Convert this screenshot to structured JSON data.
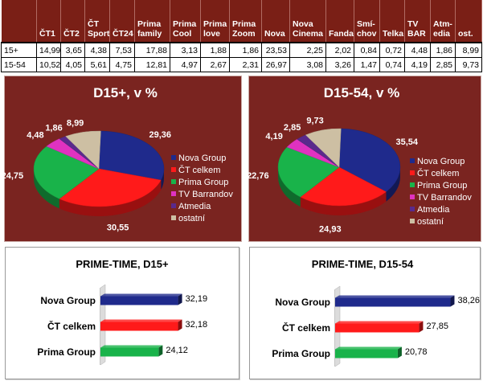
{
  "table": {
    "headers": [
      "ČT1",
      "ČT2",
      "ČT Sport",
      "ČT24",
      "Prima family",
      "Prima Cool",
      "Prima love",
      "Prima Zoom",
      "Nova",
      "Nova Cinema",
      "Fanda",
      "Smí-chov",
      "Telka",
      "TV BAR",
      "Atm-edia",
      "ost."
    ],
    "header_lines": [
      [
        "ČT1"
      ],
      [
        "ČT2"
      ],
      [
        "ČT",
        "Sport"
      ],
      [
        "ČT24"
      ],
      [
        "Prima",
        "family"
      ],
      [
        "Prima",
        "Cool"
      ],
      [
        "Prima",
        "love"
      ],
      [
        "Prima",
        "Zoom"
      ],
      [
        "Nova"
      ],
      [
        "Nova",
        "Cinema"
      ],
      [
        "Fanda"
      ],
      [
        "Smí-",
        "chov"
      ],
      [
        "Telka"
      ],
      [
        "TV",
        "BAR"
      ],
      [
        "Atm-",
        "edia"
      ],
      [
        "ost."
      ]
    ],
    "rows": [
      {
        "label": "15+",
        "values": [
          "14,99",
          "3,65",
          "4,38",
          "7,53",
          "17,88",
          "3,13",
          "1,88",
          "1,86",
          "23,53",
          "2,25",
          "2,02",
          "0,84",
          "0,72",
          "4,48",
          "1,86",
          "8,99"
        ]
      },
      {
        "label": "15-54",
        "values": [
          "10,52",
          "4,05",
          "5,61",
          "4,75",
          "12,81",
          "4,97",
          "2,67",
          "2,31",
          "26,97",
          "3,08",
          "3,26",
          "1,47",
          "0,74",
          "4,19",
          "2,85",
          "9,73"
        ]
      }
    ]
  },
  "chart_data": [
    {
      "type": "pie",
      "title": "D15+, v %",
      "labels": [
        "Nova Group",
        "ČT celkem",
        "Prima Group",
        "TV Barrandov",
        "Atmedia",
        "ostatní"
      ],
      "values": [
        29.36,
        30.55,
        24.75,
        4.48,
        1.86,
        8.99
      ],
      "value_labels": [
        "29,36",
        "30,55",
        "24,75",
        "4,48",
        "1,86",
        "8,99"
      ],
      "colors": [
        "#1f2a8c",
        "#ff1a1a",
        "#19b34a",
        "#e032c0",
        "#5a2a8c",
        "#cdbfa3"
      ],
      "legend_position": "right"
    },
    {
      "type": "pie",
      "title": "D15-54, v %",
      "labels": [
        "Nova Group",
        "ČT celkem",
        "Prima Group",
        "TV Barrandov",
        "Atmedia",
        "ostatní"
      ],
      "values": [
        35.54,
        24.93,
        22.76,
        4.19,
        2.85,
        9.73
      ],
      "value_labels": [
        "35,54",
        "24,93",
        "22,76",
        "4,19",
        "2,85",
        "9,73"
      ],
      "colors": [
        "#1f2a8c",
        "#ff1a1a",
        "#19b34a",
        "#e032c0",
        "#5a2a8c",
        "#cdbfa3"
      ],
      "legend_position": "right"
    },
    {
      "type": "bar",
      "orientation": "horizontal",
      "title": "PRIME-TIME, D15+",
      "categories": [
        "Nova Group",
        "ČT celkem",
        "Prima Group"
      ],
      "values": [
        32.19,
        32.18,
        24.12
      ],
      "value_labels": [
        "32,19",
        "32,18",
        "24,12"
      ],
      "colors": [
        "#1f2a8c",
        "#ff1a1a",
        "#19b34a"
      ],
      "xlim": [
        0,
        40
      ]
    },
    {
      "type": "bar",
      "orientation": "horizontal",
      "title": "PRIME-TIME, D15-54",
      "categories": [
        "Nova Group",
        "ČT celkem",
        "Prima Group"
      ],
      "values": [
        38.26,
        27.85,
        20.78
      ],
      "value_labels": [
        "38,26",
        "27,85",
        "20,78"
      ],
      "colors": [
        "#1f2a8c",
        "#ff1a1a",
        "#19b34a"
      ],
      "xlim": [
        0,
        40
      ]
    }
  ]
}
